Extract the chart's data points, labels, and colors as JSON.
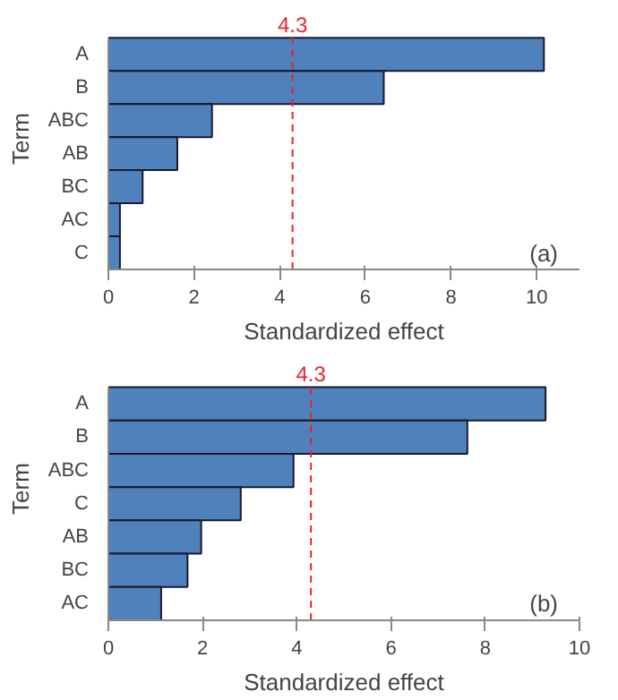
{
  "chart_data": [
    {
      "type": "bar",
      "orientation": "horizontal",
      "categories": [
        "A",
        "B",
        "ABC",
        "AB",
        "BC",
        "AC",
        "C"
      ],
      "values": [
        10.17,
        6.43,
        2.42,
        1.61,
        0.8,
        0.27,
        0.27
      ],
      "color": "#4f81bd",
      "xlabel": "Standardized effect",
      "ylabel": "Term",
      "xlim": [
        0,
        11
      ],
      "xticks": [
        0,
        2,
        4,
        6,
        8,
        10
      ],
      "grid": false,
      "ref_lines": [
        {
          "axis": "x",
          "value": 4.3,
          "label": "4.3",
          "color": "#e8242b",
          "line_style": "dashed"
        }
      ],
      "annotations": [
        "(a)"
      ]
    },
    {
      "type": "bar",
      "orientation": "horizontal",
      "categories": [
        "A",
        "B",
        "ABC",
        "C",
        "AB",
        "BC",
        "AC"
      ],
      "values": [
        9.28,
        7.62,
        3.93,
        2.81,
        1.97,
        1.68,
        1.12
      ],
      "color": "#4f81bd",
      "xlabel": "Standardized effect",
      "ylabel": "Term",
      "xlim": [
        0,
        10
      ],
      "xticks": [
        0,
        2,
        4,
        6,
        8,
        10
      ],
      "grid": false,
      "ref_lines": [
        {
          "axis": "x",
          "value": 4.3,
          "label": "4.3",
          "color": "#e8242b",
          "line_style": "dashed"
        }
      ],
      "annotations": [
        "(b)"
      ]
    }
  ]
}
